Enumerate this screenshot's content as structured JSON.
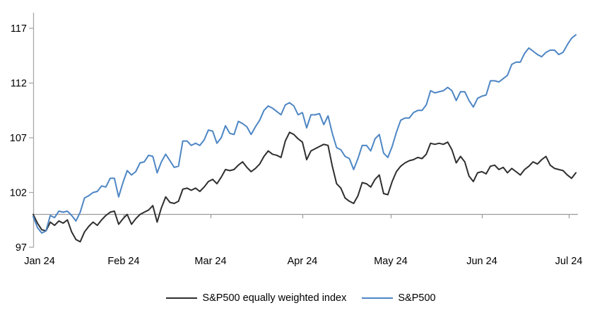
{
  "chart_data": {
    "type": "line",
    "title": "",
    "xlabel": "",
    "ylabel": "",
    "ylim": [
      97,
      117
    ],
    "y_ticks": [
      97,
      102,
      107,
      112,
      117
    ],
    "baseline": 100,
    "grid": false,
    "legend_position": "bottom-center",
    "x_tick_labels": [
      "Jan 24",
      "Feb 24",
      "Mar 24",
      "Apr 24",
      "May 24",
      "Jun 24",
      "Jul 24"
    ],
    "x": [
      "01-02",
      "01-03",
      "01-04",
      "01-05",
      "01-08",
      "01-09",
      "01-10",
      "01-11",
      "01-12",
      "01-16",
      "01-17",
      "01-18",
      "01-19",
      "01-22",
      "01-23",
      "01-24",
      "01-25",
      "01-26",
      "01-29",
      "01-30",
      "01-31",
      "02-01",
      "02-02",
      "02-05",
      "02-06",
      "02-07",
      "02-08",
      "02-09",
      "02-12",
      "02-13",
      "02-14",
      "02-15",
      "02-16",
      "02-20",
      "02-21",
      "02-22",
      "02-23",
      "02-26",
      "02-27",
      "02-28",
      "02-29",
      "03-01",
      "03-04",
      "03-05",
      "03-06",
      "03-07",
      "03-08",
      "03-11",
      "03-12",
      "03-13",
      "03-14",
      "03-15",
      "03-18",
      "03-19",
      "03-20",
      "03-21",
      "03-22",
      "03-25",
      "03-26",
      "03-27",
      "03-28",
      "04-01",
      "04-02",
      "04-03",
      "04-04",
      "04-05",
      "04-08",
      "04-09",
      "04-10",
      "04-11",
      "04-12",
      "04-15",
      "04-16",
      "04-17",
      "04-18",
      "04-19",
      "04-22",
      "04-23",
      "04-24",
      "04-25",
      "04-26",
      "04-29",
      "04-30",
      "05-01",
      "05-02",
      "05-03",
      "05-06",
      "05-07",
      "05-08",
      "05-09",
      "05-10",
      "05-13",
      "05-14",
      "05-15",
      "05-16",
      "05-17",
      "05-20",
      "05-21",
      "05-22",
      "05-23",
      "05-24",
      "05-28",
      "05-29",
      "05-30",
      "05-31",
      "06-03",
      "06-04",
      "06-05",
      "06-06",
      "06-07",
      "06-10",
      "06-11",
      "06-12",
      "06-13",
      "06-14",
      "06-17",
      "06-18",
      "06-20",
      "06-21",
      "06-24",
      "06-25",
      "06-26",
      "06-27",
      "06-28",
      "07-01",
      "07-02",
      "07-03",
      "07-05"
    ],
    "series": [
      {
        "name": "S&P500 equally weighted index",
        "color": "#2f2f2f",
        "values": [
          100.0,
          99.2,
          98.6,
          98.5,
          99.3,
          99.0,
          99.4,
          99.2,
          99.5,
          98.4,
          97.7,
          97.5,
          98.4,
          98.9,
          99.3,
          99.0,
          99.5,
          99.9,
          100.2,
          100.3,
          99.1,
          99.6,
          100.0,
          99.1,
          99.6,
          100.0,
          100.2,
          100.4,
          100.8,
          99.3,
          100.6,
          101.6,
          101.1,
          101.0,
          101.2,
          102.3,
          102.4,
          102.2,
          102.4,
          102.1,
          102.5,
          103.0,
          103.2,
          102.8,
          103.4,
          104.1,
          104.0,
          104.1,
          104.5,
          104.8,
          104.3,
          103.9,
          104.2,
          104.6,
          105.3,
          105.8,
          105.5,
          105.4,
          105.2,
          106.7,
          107.5,
          107.3,
          106.9,
          106.6,
          105.0,
          105.8,
          106.0,
          106.2,
          106.4,
          106.3,
          104.4,
          102.8,
          102.4,
          101.5,
          101.2,
          101.0,
          101.7,
          102.9,
          102.8,
          102.5,
          103.2,
          103.6,
          101.9,
          101.8,
          103.0,
          103.9,
          104.4,
          104.7,
          104.9,
          105.0,
          105.2,
          105.1,
          105.5,
          106.5,
          106.4,
          106.5,
          106.4,
          106.6,
          105.9,
          104.7,
          105.3,
          104.8,
          103.5,
          103.0,
          103.8,
          103.9,
          103.7,
          104.4,
          104.5,
          104.1,
          104.3,
          103.8,
          104.2,
          103.9,
          103.6,
          104.1,
          104.4,
          104.8,
          104.6,
          105.0,
          105.3,
          104.5,
          104.2,
          104.1,
          104.0,
          103.6,
          103.3,
          103.8
        ]
      },
      {
        "name": "S&P500",
        "color": "#4e86c4",
        "values": [
          99.8,
          98.8,
          98.3,
          98.5,
          99.9,
          99.7,
          100.3,
          100.2,
          100.3,
          99.9,
          99.4,
          100.2,
          101.5,
          101.7,
          102.0,
          102.1,
          102.6,
          102.5,
          103.3,
          103.3,
          101.6,
          102.9,
          104.0,
          103.6,
          103.9,
          104.7,
          104.8,
          105.4,
          105.3,
          103.8,
          104.8,
          105.5,
          104.9,
          104.3,
          104.4,
          106.7,
          106.7,
          106.3,
          106.5,
          106.3,
          106.8,
          107.7,
          107.6,
          106.5,
          107.0,
          108.1,
          107.4,
          107.3,
          108.5,
          108.3,
          108.0,
          107.3,
          108.0,
          108.6,
          109.5,
          109.9,
          109.7,
          109.4,
          109.1,
          110.0,
          110.2,
          109.9,
          109.1,
          109.3,
          107.9,
          109.1,
          109.1,
          109.2,
          108.2,
          109.0,
          107.4,
          106.1,
          105.9,
          105.3,
          105.1,
          104.1,
          105.1,
          106.3,
          106.3,
          105.8,
          106.9,
          107.3,
          105.6,
          105.2,
          106.2,
          107.5,
          108.6,
          108.8,
          108.8,
          109.3,
          109.5,
          109.5,
          110.0,
          111.3,
          111.1,
          111.2,
          111.3,
          111.6,
          111.3,
          110.4,
          111.2,
          111.2,
          110.4,
          109.8,
          110.6,
          110.8,
          110.9,
          112.2,
          112.2,
          112.1,
          112.4,
          112.7,
          113.7,
          113.9,
          113.9,
          114.7,
          115.2,
          114.9,
          114.6,
          114.4,
          114.8,
          115.0,
          115.0,
          114.6,
          114.8,
          115.5,
          116.1,
          116.4
        ]
      }
    ],
    "colors": {
      "axis_gray": "#a8a8a8",
      "baseline_gray": "#9b9b9b",
      "text": "#000000",
      "background": "#ffffff"
    }
  }
}
